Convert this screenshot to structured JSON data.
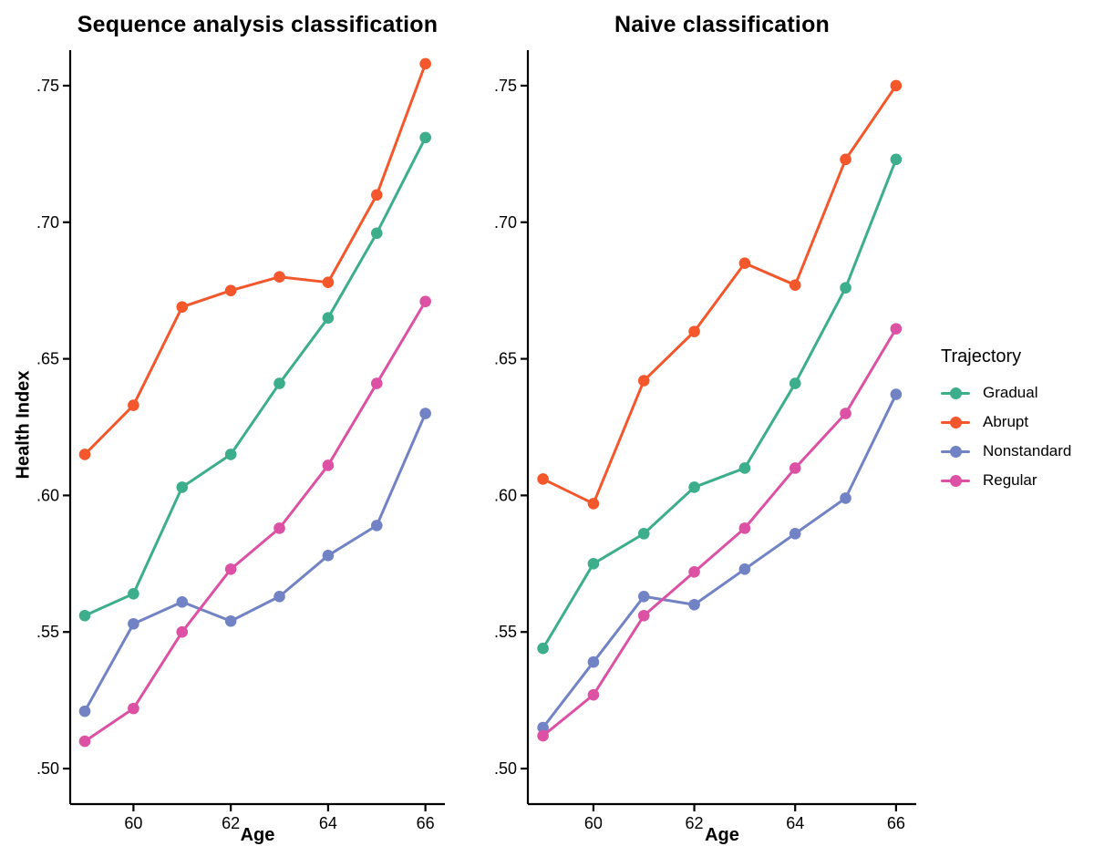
{
  "chart_data": {
    "type": "line",
    "x": [
      59,
      60,
      61,
      62,
      63,
      64,
      65,
      66
    ],
    "xlabel": "Age",
    "ylabel": "Health Index",
    "xlim": [
      58.7,
      66.4
    ],
    "ylim": [
      0.487,
      0.763
    ],
    "x_ticks": [
      60,
      62,
      64,
      66
    ],
    "x_tick_labels": [
      "60",
      "62",
      "64",
      "66"
    ],
    "y_ticks": [
      0.5,
      0.55,
      0.6,
      0.65,
      0.7,
      0.75
    ],
    "y_tick_labels": [
      ".50",
      ".55",
      ".60",
      ".65",
      ".70",
      ".75"
    ],
    "grid": false,
    "panels": [
      {
        "title": "Sequence analysis classification",
        "series": [
          {
            "name": "Gradual",
            "color": "#3CAE8C",
            "values": [
              0.556,
              0.564,
              0.603,
              0.615,
              0.641,
              0.665,
              0.696,
              0.731
            ]
          },
          {
            "name": "Abrupt",
            "color": "#F4572C",
            "values": [
              0.615,
              0.633,
              0.669,
              0.675,
              0.68,
              0.678,
              0.71,
              0.758
            ]
          },
          {
            "name": "Nonstandard",
            "color": "#7183C5",
            "values": [
              0.521,
              0.553,
              0.561,
              0.554,
              0.563,
              0.578,
              0.589,
              0.63
            ]
          },
          {
            "name": "Regular",
            "color": "#DC51A4",
            "values": [
              0.51,
              0.522,
              0.55,
              0.573,
              0.588,
              0.611,
              0.641,
              0.671
            ]
          }
        ]
      },
      {
        "title": "Naive classification",
        "series": [
          {
            "name": "Gradual",
            "color": "#3CAE8C",
            "values": [
              0.544,
              0.575,
              0.586,
              0.603,
              0.61,
              0.641,
              0.676,
              0.723
            ]
          },
          {
            "name": "Abrupt",
            "color": "#F4572C",
            "values": [
              0.606,
              0.597,
              0.642,
              0.66,
              0.685,
              0.677,
              0.723,
              0.75
            ]
          },
          {
            "name": "Nonstandard",
            "color": "#7183C5",
            "values": [
              0.515,
              0.539,
              0.563,
              0.56,
              0.573,
              0.586,
              0.599,
              0.637
            ]
          },
          {
            "name": "Regular",
            "color": "#DC51A4",
            "values": [
              0.512,
              0.527,
              0.556,
              0.572,
              0.588,
              0.61,
              0.63,
              0.661
            ]
          }
        ]
      }
    ],
    "legend": {
      "title": "Trajectory",
      "position": "right",
      "items": [
        {
          "label": "Gradual",
          "color": "#3CAE8C"
        },
        {
          "label": "Abrupt",
          "color": "#F4572C"
        },
        {
          "label": "Nonstandard",
          "color": "#7183C5"
        },
        {
          "label": "Regular",
          "color": "#DC51A4"
        }
      ]
    },
    "style": {
      "axis_color": "#000000",
      "tick_label_color": "#000000",
      "line_width": 3,
      "point_radius": 6.3
    }
  }
}
